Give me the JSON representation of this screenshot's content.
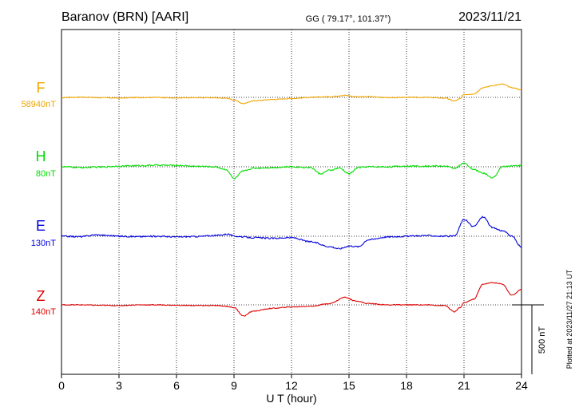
{
  "header": {
    "station": "Baranov (BRN)  [AARI]",
    "coords": "GG ( 79.17°, 101.37°)",
    "date": "2023/11/21"
  },
  "chart_data": {
    "type": "line",
    "xlabel": "U T (hour)",
    "xlim": [
      0,
      24
    ],
    "xticks": [
      0,
      3,
      6,
      9,
      12,
      15,
      18,
      21,
      24
    ],
    "grid": true,
    "scale_bar": "500 nT",
    "plotted_note": "Plotted at 2023/11/27 21:13 UT",
    "components": [
      {
        "name": "F",
        "baseline": "58940nT",
        "color": "#f0a500",
        "keyframes": [
          [
            0,
            -2
          ],
          [
            1,
            2
          ],
          [
            2,
            -2
          ],
          [
            3,
            -5
          ],
          [
            4,
            -1
          ],
          [
            5,
            0
          ],
          [
            6,
            -5
          ],
          [
            7,
            -2
          ],
          [
            8,
            -3
          ],
          [
            8.6,
            -5
          ],
          [
            9,
            -20
          ],
          [
            9.5,
            -45
          ],
          [
            10,
            -25
          ],
          [
            11,
            -15
          ],
          [
            12,
            -8
          ],
          [
            13,
            0
          ],
          [
            14,
            5
          ],
          [
            14.8,
            15
          ],
          [
            15.3,
            5
          ],
          [
            16,
            5
          ],
          [
            17,
            -2
          ],
          [
            18,
            0
          ],
          [
            19,
            0
          ],
          [
            20,
            -5
          ],
          [
            20.5,
            -25
          ],
          [
            20.8,
            -10
          ],
          [
            21,
            20
          ],
          [
            21.5,
            25
          ],
          [
            22,
            70
          ],
          [
            22.5,
            85
          ],
          [
            23,
            95
          ],
          [
            23.5,
            70
          ],
          [
            24,
            55
          ]
        ],
        "noise": 3
      },
      {
        "name": "H",
        "baseline": "80nT",
        "color": "#00dd00",
        "keyframes": [
          [
            0,
            0
          ],
          [
            1,
            -5
          ],
          [
            2,
            -2
          ],
          [
            3,
            5
          ],
          [
            4,
            8
          ],
          [
            5,
            12
          ],
          [
            6,
            10
          ],
          [
            7,
            4
          ],
          [
            8,
            0
          ],
          [
            8.6,
            -20
          ],
          [
            9,
            -85
          ],
          [
            9.5,
            -30
          ],
          [
            10,
            -10
          ],
          [
            11,
            -5
          ],
          [
            12,
            0
          ],
          [
            13,
            -5
          ],
          [
            13.5,
            -50
          ],
          [
            14,
            -25
          ],
          [
            14.5,
            -10
          ],
          [
            15,
            -50
          ],
          [
            15.5,
            -5
          ],
          [
            16,
            0
          ],
          [
            17,
            0
          ],
          [
            18,
            5
          ],
          [
            19,
            5
          ],
          [
            20,
            5
          ],
          [
            20.5,
            -10
          ],
          [
            21,
            25
          ],
          [
            21.5,
            -20
          ],
          [
            22,
            -45
          ],
          [
            22.5,
            -80
          ],
          [
            23,
            0
          ],
          [
            23.5,
            8
          ],
          [
            24,
            10
          ]
        ],
        "noise": 5
      },
      {
        "name": "E",
        "baseline": "130nT",
        "color": "#0000dd",
        "keyframes": [
          [
            0,
            0
          ],
          [
            1,
            -3
          ],
          [
            1.8,
            10
          ],
          [
            2.5,
            5
          ],
          [
            3,
            0
          ],
          [
            4,
            -3
          ],
          [
            5,
            0
          ],
          [
            6,
            -5
          ],
          [
            7,
            -2
          ],
          [
            8,
            5
          ],
          [
            8.7,
            15
          ],
          [
            9,
            0
          ],
          [
            10,
            -10
          ],
          [
            11,
            -15
          ],
          [
            12,
            -10
          ],
          [
            13,
            -40
          ],
          [
            14,
            -75
          ],
          [
            14.5,
            -90
          ],
          [
            15,
            -70
          ],
          [
            15.5,
            -75
          ],
          [
            16,
            -25
          ],
          [
            17,
            -5
          ],
          [
            18,
            0
          ],
          [
            19,
            5
          ],
          [
            20,
            0
          ],
          [
            20.5,
            0
          ],
          [
            21,
            120
          ],
          [
            21.5,
            70
          ],
          [
            22,
            140
          ],
          [
            22.5,
            60
          ],
          [
            23,
            40
          ],
          [
            23.5,
            0
          ],
          [
            24,
            -80
          ]
        ],
        "noise": 5
      },
      {
        "name": "Z",
        "baseline": "140nT",
        "color": "#dd0000",
        "keyframes": [
          [
            0,
            0
          ],
          [
            1,
            0
          ],
          [
            2,
            -3
          ],
          [
            3,
            -5
          ],
          [
            4,
            0
          ],
          [
            5,
            0
          ],
          [
            6,
            -3
          ],
          [
            7,
            -5
          ],
          [
            8,
            -5
          ],
          [
            8.6,
            -10
          ],
          [
            9,
            -20
          ],
          [
            9.5,
            -80
          ],
          [
            10,
            -45
          ],
          [
            11,
            -25
          ],
          [
            12,
            -15
          ],
          [
            13,
            -10
          ],
          [
            14,
            10
          ],
          [
            14.8,
            55
          ],
          [
            15.3,
            30
          ],
          [
            16,
            10
          ],
          [
            17,
            0
          ],
          [
            18,
            0
          ],
          [
            19,
            0
          ],
          [
            20,
            -5
          ],
          [
            20.5,
            -50
          ],
          [
            20.8,
            -20
          ],
          [
            21,
            15
          ],
          [
            21.5,
            40
          ],
          [
            22,
            150
          ],
          [
            22.5,
            160
          ],
          [
            23,
            150
          ],
          [
            23.5,
            70
          ],
          [
            24,
            110
          ]
        ],
        "noise": 3
      }
    ]
  }
}
